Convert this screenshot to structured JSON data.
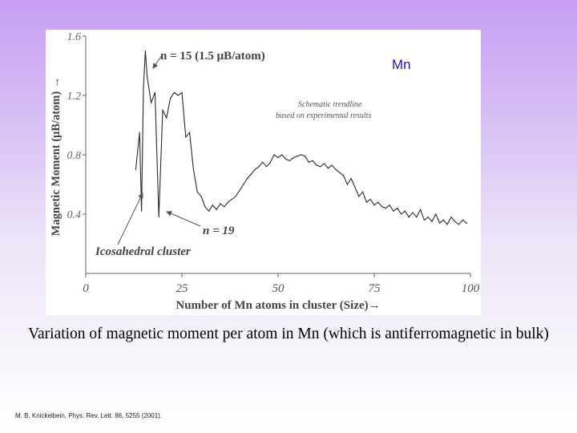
{
  "slide": {
    "caption": "Variation of magnetic moment per atom in Mn (which is antiferromagnetic in bulk)",
    "citation": "M. B. Knickelbein, Phys. Rev. Lett. 86, 5255 (2001)."
  },
  "chart_data": {
    "type": "line",
    "title": "Mn",
    "xlabel": "Number of Mn atoms in cluster (Size)→",
    "ylabel": "Magnetic Moment (μB/atom) →",
    "xlim": [
      0,
      100
    ],
    "ylim": [
      0,
      1.6
    ],
    "x_ticks": [
      "0",
      "25",
      "50",
      "75",
      "100"
    ],
    "y_ticks": [
      "1.6",
      "1.2",
      "0.8",
      "0.4"
    ],
    "grid": false,
    "colors": {
      "line": "#2a2a2a",
      "title": "#1e14c8"
    },
    "annotations": {
      "peak": "n = 15 (1.5 μB/atom)",
      "dip": "n = 19",
      "icosahedral": "Icosahedral cluster",
      "trendline_note_1": "Schematic trendline",
      "trendline_note_2": "based on experimental results"
    },
    "series": [
      {
        "x": [
          13,
          14,
          14.5,
          15,
          15.5,
          16,
          17,
          18,
          19,
          20,
          21,
          22,
          23,
          24,
          25,
          26,
          27,
          28,
          29,
          30,
          31,
          32,
          33,
          34,
          35,
          36,
          37,
          38,
          39,
          40,
          41,
          42,
          43,
          44,
          45,
          46,
          47,
          48,
          49,
          50,
          51,
          52,
          53,
          54,
          55,
          56,
          57,
          58,
          59,
          60,
          61,
          62,
          63,
          64,
          65,
          66,
          67,
          68,
          69,
          70,
          71,
          72,
          73,
          74,
          75,
          76,
          77,
          78,
          79,
          80,
          81,
          82,
          83,
          84,
          85,
          86,
          87,
          88,
          89,
          90,
          91,
          92,
          93,
          94,
          95,
          96,
          97,
          98,
          99
        ],
        "y": [
          0.7,
          0.95,
          0.42,
          1.25,
          1.5,
          1.32,
          1.15,
          1.22,
          0.38,
          1.1,
          1.05,
          1.18,
          1.22,
          1.2,
          1.22,
          0.92,
          0.95,
          0.7,
          0.55,
          0.52,
          0.45,
          0.42,
          0.46,
          0.43,
          0.47,
          0.45,
          0.48,
          0.5,
          0.52,
          0.56,
          0.6,
          0.64,
          0.67,
          0.7,
          0.72,
          0.75,
          0.72,
          0.75,
          0.8,
          0.78,
          0.8,
          0.77,
          0.76,
          0.78,
          0.79,
          0.8,
          0.79,
          0.75,
          0.76,
          0.73,
          0.72,
          0.74,
          0.71,
          0.73,
          0.7,
          0.68,
          0.66,
          0.6,
          0.64,
          0.58,
          0.52,
          0.55,
          0.48,
          0.5,
          0.46,
          0.48,
          0.45,
          0.44,
          0.46,
          0.42,
          0.44,
          0.4,
          0.42,
          0.38,
          0.41,
          0.38,
          0.43,
          0.36,
          0.38,
          0.35,
          0.4,
          0.34,
          0.36,
          0.33,
          0.38,
          0.35,
          0.33,
          0.36,
          0.34
        ]
      }
    ]
  }
}
